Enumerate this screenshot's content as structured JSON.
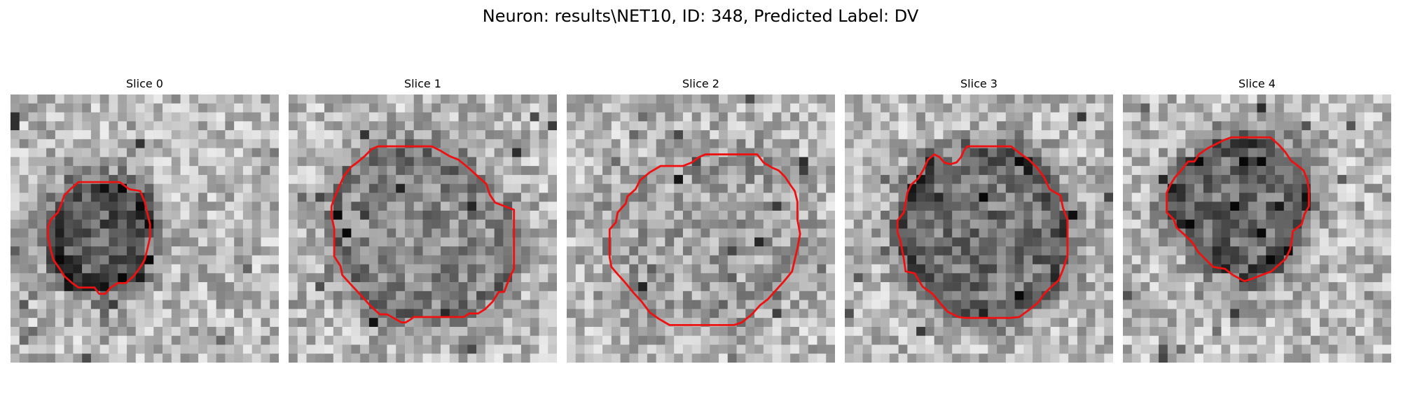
{
  "figure": {
    "title": "Neuron: results\\NET10, ID: 348, Predicted Label: DV",
    "contour_color": "#ee1111"
  },
  "slices": [
    {
      "label": "Slice 0"
    },
    {
      "label": "Slice 1"
    },
    {
      "label": "Slice 2"
    },
    {
      "label": "Slice 3"
    },
    {
      "label": "Slice 4"
    }
  ]
}
